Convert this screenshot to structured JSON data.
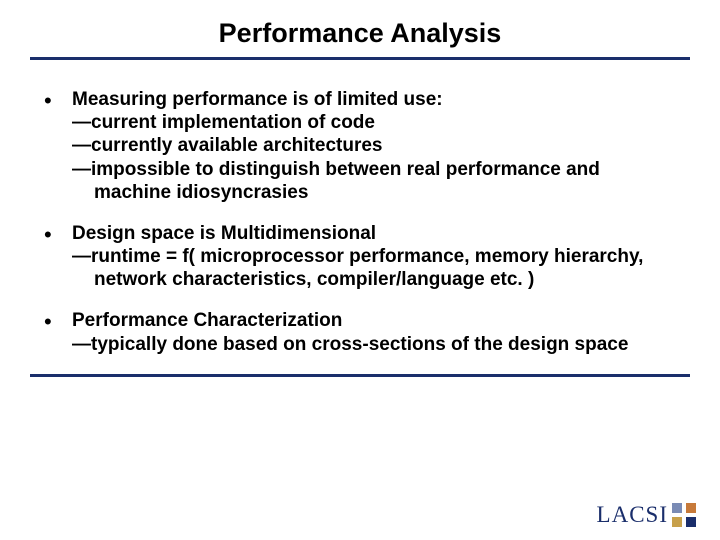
{
  "title": "Performance Analysis",
  "colors": {
    "rule": "#1a2e6b",
    "text": "#000000",
    "background": "#ffffff",
    "logo_text": "#1a2e6b",
    "logo_tiles": [
      "#7a8bb5",
      "#c77a3a",
      "#c7a04a",
      "#1a2e6b"
    ]
  },
  "typography": {
    "title_fontsize": 27,
    "body_fontsize": 19,
    "body_weight": "bold",
    "font_family": "Arial"
  },
  "bullets": [
    {
      "lead": "Measuring performance is of limited use:",
      "subs": [
        "—current implementation of code",
        "—currently available architectures",
        "—impossible to distinguish between real performance and machine idiosyncrasies"
      ]
    },
    {
      "lead": "Design space is Multidimensional",
      "subs": [
        "—runtime = f( microprocessor performance, memory hierarchy, network characteristics, compiler/language etc. )"
      ]
    },
    {
      "lead": "Performance Characterization",
      "subs": [
        "—typically done based on cross-sections of the design space"
      ]
    }
  ],
  "logo": {
    "text": "LACSI"
  }
}
